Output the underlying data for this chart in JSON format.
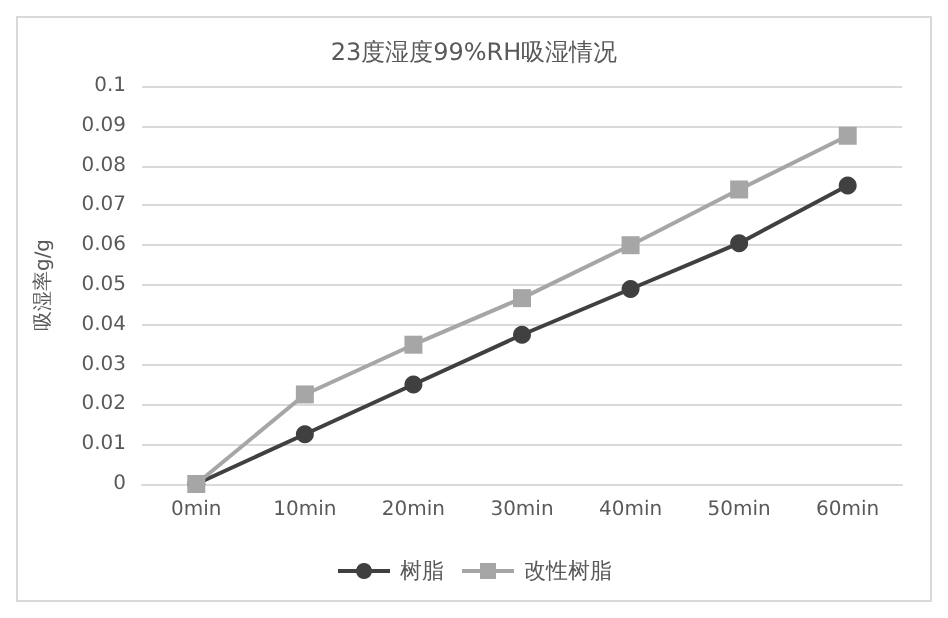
{
  "chart_data": {
    "type": "line",
    "title": "23度湿度99%RH吸湿情况",
    "ylabel": "吸湿率g/g",
    "categories": [
      "0min",
      "10min",
      "20min",
      "30min",
      "40min",
      "50min",
      "60min"
    ],
    "series": [
      {
        "name": "树脂",
        "color": "#404040",
        "marker": "circle",
        "values": [
          0,
          0.0125,
          0.025,
          0.0375,
          0.049,
          0.0605,
          0.075
        ]
      },
      {
        "name": "改性树脂",
        "color": "#a6a6a6",
        "marker": "square",
        "values": [
          0,
          0.0225,
          0.035,
          0.0467,
          0.06,
          0.074,
          0.0875
        ]
      }
    ],
    "ylim": [
      0,
      0.1
    ],
    "yticks": [
      0,
      0.01,
      0.02,
      0.03,
      0.04,
      0.05,
      0.06,
      0.07,
      0.08,
      0.09,
      0.1
    ],
    "grid": "y",
    "legend": "bottom",
    "line_style": "solid"
  }
}
